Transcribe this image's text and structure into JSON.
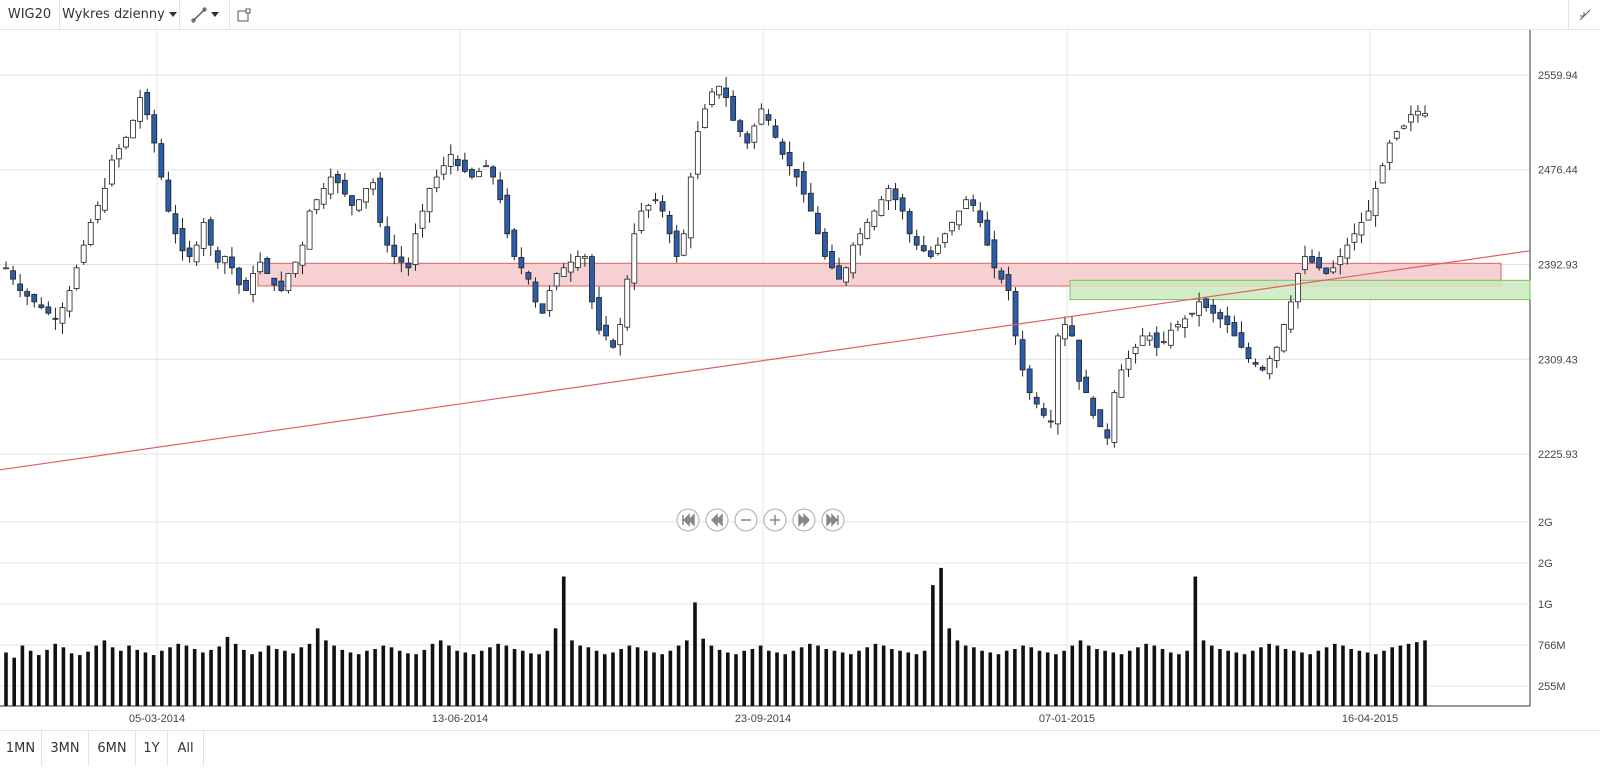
{
  "toolbar": {
    "symbol": "WIG20",
    "chart_type": "Wykres dzienny",
    "draw_icon": "pencil-line-icon",
    "box_icon": "rectangle-tool-icon",
    "collapse_icon": "collapse-arrows-icon"
  },
  "ranges": [
    "1MN",
    "3MN",
    "6MN",
    "1Y",
    "All"
  ],
  "nav_icons": [
    "first-icon",
    "rewind-icon",
    "zoom-out-icon",
    "zoom-in-icon",
    "forward-icon",
    "last-icon"
  ],
  "colors": {
    "up": "#ffffff",
    "down": "#2b5ea8",
    "resistance": "#f3c9cc",
    "support": "#cdeabf",
    "trendline": "#e06060"
  },
  "chart_data": {
    "type": "candlestick",
    "title": "",
    "y_ticks": [
      "2559.94",
      "2476.44",
      "2392.93",
      "2309.43",
      "2225.93"
    ],
    "y_range": [
      2198,
      2615
    ],
    "x_ticks": [
      "05-03-2014",
      "13-06-2014",
      "23-09-2014",
      "07-01-2015",
      "16-04-2015"
    ],
    "volume_ticks": [
      "2G",
      "2G",
      "1G",
      "766M",
      "255M"
    ],
    "grid": true,
    "shading": [
      {
        "name": "resistance",
        "y": [
          2374,
          2394
        ]
      },
      {
        "name": "support",
        "y": [
          2362,
          2379
        ]
      }
    ],
    "trendline": {
      "from": [
        "01-2014",
        2212
      ],
      "to": [
        "05-2015",
        2408
      ]
    },
    "close_path": [
      2390,
      2380,
      2370,
      2365,
      2360,
      2355,
      2350,
      2345,
      2355,
      2370,
      2390,
      2410,
      2430,
      2445,
      2460,
      2485,
      2495,
      2505,
      2520,
      2540,
      2525,
      2500,
      2470,
      2440,
      2420,
      2405,
      2400,
      2410,
      2430,
      2410,
      2395,
      2400,
      2390,
      2375,
      2370,
      2385,
      2395,
      2385,
      2375,
      2370,
      2385,
      2395,
      2410,
      2440,
      2450,
      2460,
      2470,
      2465,
      2455,
      2445,
      2450,
      2460,
      2465,
      2430,
      2410,
      2400,
      2395,
      2390,
      2420,
      2440,
      2460,
      2470,
      2480,
      2490,
      2480,
      2475,
      2470,
      2475,
      2480,
      2470,
      2450,
      2420,
      2400,
      2390,
      2380,
      2360,
      2350,
      2370,
      2385,
      2390,
      2395,
      2400,
      2400,
      2360,
      2335,
      2330,
      2320,
      2340,
      2380,
      2420,
      2440,
      2445,
      2450,
      2440,
      2420,
      2400,
      2420,
      2470,
      2510,
      2530,
      2545,
      2550,
      2540,
      2520,
      2510,
      2500,
      2515,
      2530,
      2520,
      2505,
      2490,
      2480,
      2470,
      2455,
      2440,
      2420,
      2400,
      2390,
      2380,
      2390,
      2410,
      2420,
      2430,
      2440,
      2450,
      2460,
      2450,
      2440,
      2420,
      2410,
      2405,
      2400,
      2410,
      2420,
      2430,
      2440,
      2450,
      2445,
      2430,
      2410,
      2390,
      2380,
      2370,
      2330,
      2300,
      2280,
      2270,
      2260,
      2255,
      2330,
      2340,
      2330,
      2290,
      2280,
      2260,
      2250,
      2240,
      2280,
      2300,
      2310,
      2320,
      2330,
      2330,
      2320,
      2325,
      2335,
      2340,
      2345,
      2350,
      2360,
      2355,
      2350,
      2345,
      2340,
      2330,
      2320,
      2310,
      2305,
      2300,
      2310,
      2320,
      2340,
      2360,
      2385,
      2400,
      2395,
      2390,
      2385,
      2390,
      2400,
      2410,
      2420,
      2430,
      2440,
      2460,
      2480,
      2500,
      2510,
      2515,
      2525,
      2528,
      2526
    ],
    "volume_path": [
      620,
      560,
      700,
      640,
      590,
      650,
      720,
      680,
      610,
      590,
      630,
      700,
      760,
      680,
      640,
      700,
      650,
      620,
      590,
      640,
      680,
      720,
      700,
      660,
      620,
      650,
      690,
      800,
      720,
      650,
      600,
      630,
      700,
      660,
      640,
      610,
      680,
      720,
      900,
      760,
      700,
      650,
      620,
      600,
      640,
      660,
      700,
      680,
      640,
      610,
      600,
      650,
      720,
      760,
      700,
      640,
      620,
      600,
      640,
      680,
      720,
      700,
      660,
      640,
      610,
      600,
      640,
      900,
      1500,
      760,
      700,
      680,
      640,
      600,
      620,
      660,
      700,
      680,
      640,
      620,
      600,
      640,
      700,
      760,
      1200,
      780,
      700,
      650,
      620,
      600,
      640,
      660,
      700,
      640,
      620,
      600,
      640,
      680,
      720,
      700,
      660,
      640,
      620,
      600,
      640,
      680,
      720,
      700,
      660,
      640,
      620,
      600,
      640,
      1400,
      1600,
      900,
      760,
      700,
      680,
      640,
      620,
      600,
      640,
      660,
      700,
      680,
      640,
      620,
      600,
      640,
      700,
      760,
      700,
      660,
      640,
      620,
      600,
      640,
      680,
      720,
      700,
      660,
      620,
      600,
      640,
      1500,
      760,
      700,
      660,
      640,
      620,
      600,
      640,
      680,
      720,
      700,
      660,
      640,
      620,
      600,
      640,
      680,
      720,
      700,
      660,
      640,
      620,
      600,
      640,
      680,
      700,
      720,
      740,
      760
    ]
  }
}
